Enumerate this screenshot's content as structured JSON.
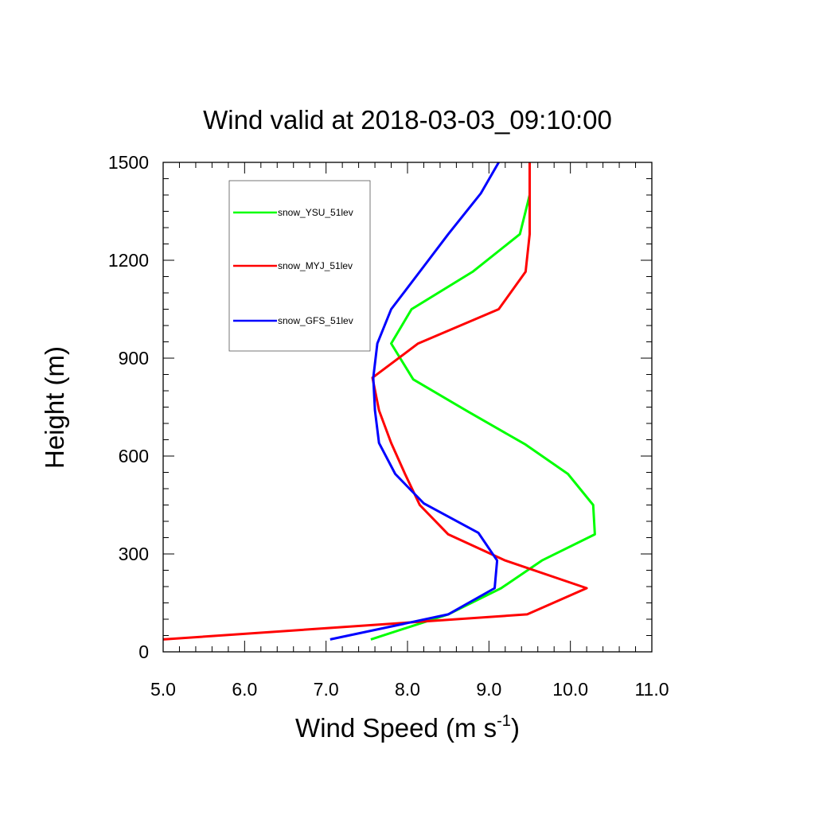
{
  "chart_data": {
    "type": "line",
    "title": "Wind valid at 2018-03-03_09:10:00",
    "xlabel": "Wind Speed (m s",
    "xlabel_sup": "-1",
    "xlabel_close": ")",
    "ylabel": "Height (m)",
    "xlim": [
      5.0,
      11.0
    ],
    "ylim": [
      0,
      1500
    ],
    "xticks": [
      5.0,
      6.0,
      7.0,
      8.0,
      9.0,
      10.0,
      11.0
    ],
    "xtick_labels": [
      "5.0",
      "6.0",
      "7.0",
      "8.0",
      "9.0",
      "10.0",
      "11.0"
    ],
    "yticks": [
      0,
      300,
      600,
      900,
      1200,
      1500
    ],
    "ytick_labels": [
      "0",
      "300",
      "600",
      "900",
      "1200",
      "1500"
    ],
    "grid": false,
    "legend_position": "top-left",
    "series": [
      {
        "name": "snow_YSU_51lev",
        "color": "#00ff00",
        "points": [
          [
            7.55,
            38
          ],
          [
            8.5,
            115
          ],
          [
            9.15,
            195
          ],
          [
            9.65,
            280
          ],
          [
            10.3,
            360
          ],
          [
            10.28,
            450
          ],
          [
            9.97,
            545
          ],
          [
            9.45,
            635
          ],
          [
            8.75,
            735
          ],
          [
            8.07,
            835
          ],
          [
            7.8,
            945
          ],
          [
            8.05,
            1050
          ],
          [
            8.8,
            1165
          ],
          [
            9.38,
            1280
          ],
          [
            9.5,
            1400
          ],
          [
            9.5,
            1500
          ]
        ]
      },
      {
        "name": "snow_MYJ_51lev",
        "color": "#ff0000",
        "points": [
          [
            5.0,
            38
          ],
          [
            9.47,
            115
          ],
          [
            10.2,
            195
          ],
          [
            9.2,
            280
          ],
          [
            8.5,
            360
          ],
          [
            8.15,
            450
          ],
          [
            7.97,
            545
          ],
          [
            7.8,
            640
          ],
          [
            7.65,
            740
          ],
          [
            7.57,
            840
          ],
          [
            8.13,
            945
          ],
          [
            9.12,
            1050
          ],
          [
            9.45,
            1165
          ],
          [
            9.5,
            1280
          ],
          [
            9.5,
            1400
          ],
          [
            9.5,
            1500
          ]
        ]
      },
      {
        "name": "snow_GFS_51lev",
        "color": "#0000ff",
        "points": [
          [
            7.05,
            38
          ],
          [
            8.5,
            115
          ],
          [
            9.07,
            195
          ],
          [
            9.1,
            280
          ],
          [
            8.87,
            365
          ],
          [
            8.2,
            455
          ],
          [
            7.85,
            545
          ],
          [
            7.65,
            640
          ],
          [
            7.6,
            740
          ],
          [
            7.58,
            840
          ],
          [
            7.63,
            945
          ],
          [
            7.8,
            1050
          ],
          [
            8.15,
            1165
          ],
          [
            8.5,
            1280
          ],
          [
            8.9,
            1405
          ],
          [
            9.12,
            1500
          ]
        ]
      }
    ]
  }
}
